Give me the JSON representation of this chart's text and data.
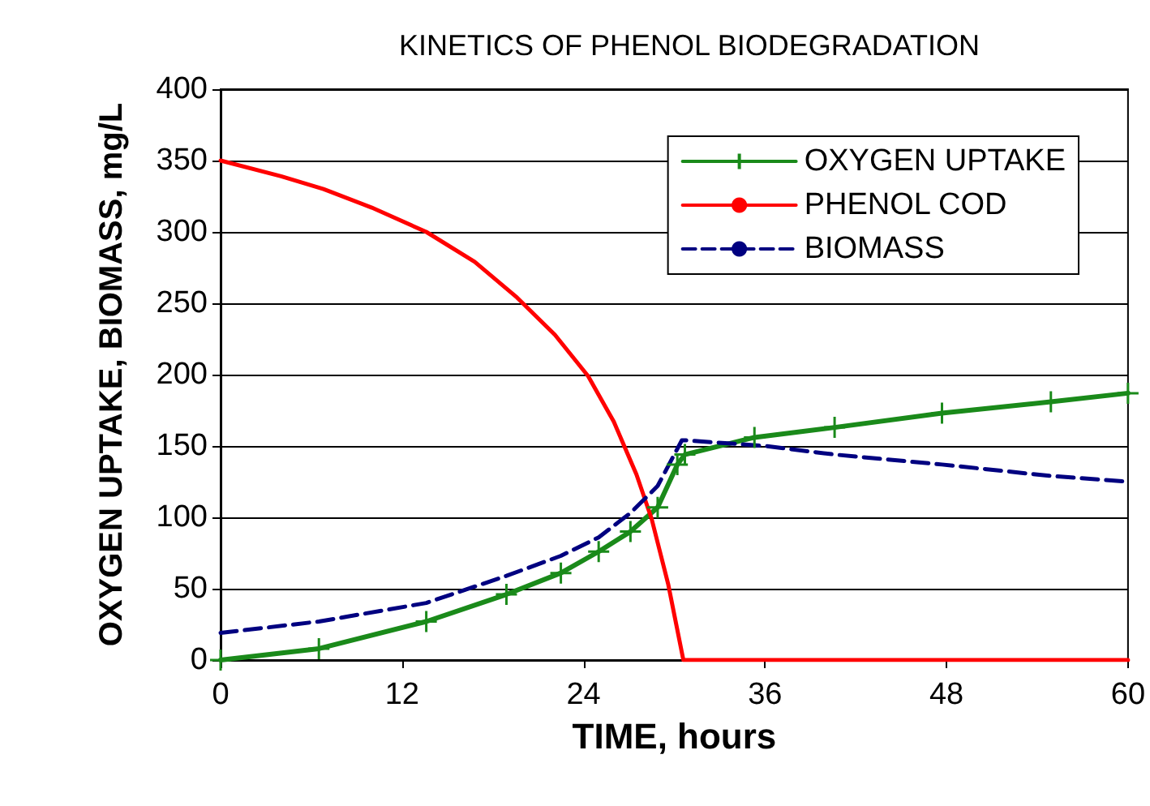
{
  "chart_data": {
    "type": "line",
    "title": "KINETICS OF PHENOL BIODEGRADATION",
    "xlabel": "TIME, hours",
    "ylabel": "OXYGEN UPTAKE, BIOMASS, mg/L",
    "xlim": [
      0,
      60
    ],
    "xticks": [
      0,
      12,
      24,
      36,
      48,
      60
    ],
    "ylim": [
      0,
      400
    ],
    "yticks": [
      0,
      50,
      100,
      150,
      200,
      250,
      300,
      350,
      400
    ],
    "grid": "y",
    "legend": "top right",
    "series": [
      {
        "name": "OXYGEN UPTAKE",
        "color": "#1a8a1a",
        "marker": "cross",
        "line_style": "solid",
        "x": [
          0,
          6.5,
          13.6,
          18.9,
          22.5,
          25,
          27.1,
          28.9,
          30.2,
          30.7,
          35.3,
          40.6,
          47.7,
          54.9,
          60
        ],
        "values": [
          0,
          8,
          27,
          46,
          61,
          76,
          90,
          107,
          137,
          144,
          156,
          163,
          173,
          181,
          187
        ]
      },
      {
        "name": "PHENOL COD",
        "color": "#ff0000",
        "marker": "none",
        "line_style": "solid",
        "x": [
          0,
          4,
          6.8,
          10,
          13.6,
          16.8,
          19.6,
          22.1,
          24.3,
          26,
          27.5,
          28.5,
          29.6,
          30.6,
          60
        ],
        "values": [
          350,
          339,
          330,
          317,
          300,
          279,
          254,
          228,
          199,
          167,
          130,
          99,
          53,
          0,
          0
        ]
      },
      {
        "name": "BIOMASS",
        "color": "#000080",
        "marker": "none",
        "line_style": "dashed",
        "x": [
          0,
          6.5,
          13.6,
          18.9,
          22.5,
          25,
          27.1,
          28.9,
          30.5,
          30.7,
          36,
          40.6,
          47.7,
          54.9,
          60
        ],
        "values": [
          19,
          27,
          40,
          59,
          73,
          86,
          103,
          122,
          154,
          154,
          150,
          144,
          137,
          129,
          125
        ]
      }
    ]
  }
}
